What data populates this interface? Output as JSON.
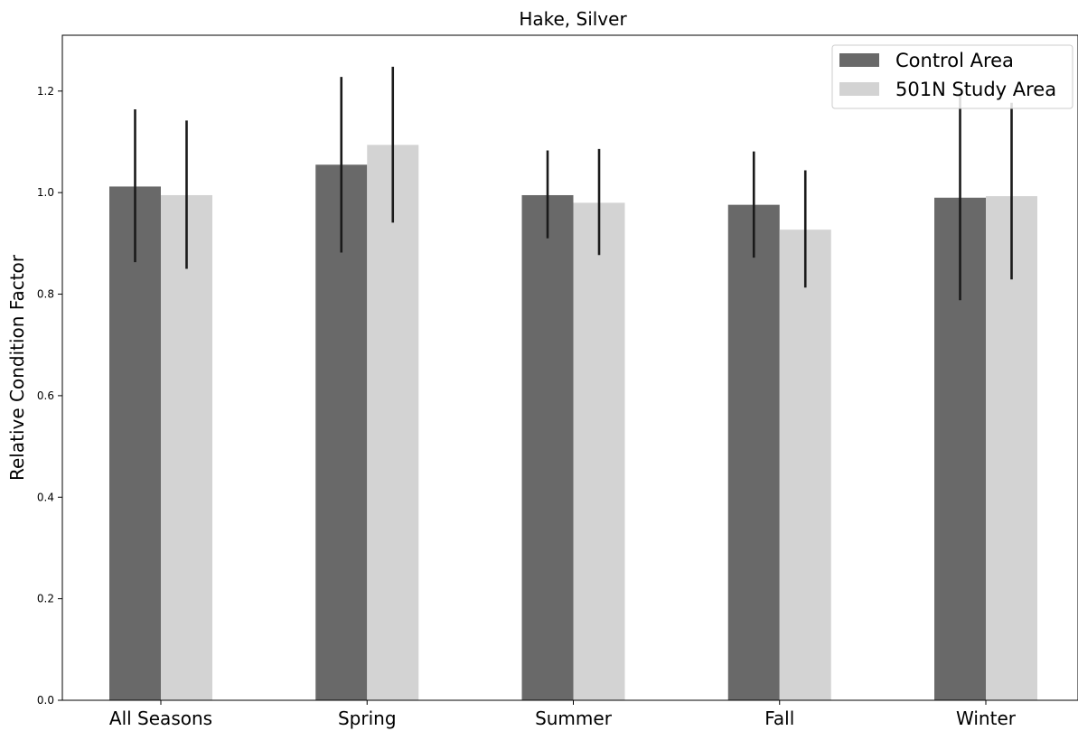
{
  "chart_data": {
    "type": "bar",
    "title": "Hake, Silver",
    "xlabel": "",
    "ylabel": "Relative Condition Factor",
    "ylim": [
      0,
      1.31
    ],
    "yticks": [
      "0.0",
      "0.2",
      "0.4",
      "0.6",
      "0.8",
      "1.0",
      "1.2"
    ],
    "categories": [
      "All Seasons",
      "Spring",
      "Summer",
      "Fall",
      "Winter"
    ],
    "series": [
      {
        "name": "Control Area",
        "color": "#696969",
        "values": [
          1.012,
          1.055,
          0.995,
          0.976,
          0.99
        ],
        "err_low": [
          0.863,
          0.882,
          0.91,
          0.872,
          0.788
        ],
        "err_high": [
          1.164,
          1.228,
          1.083,
          1.081,
          1.195
        ]
      },
      {
        "name": "501N Study Area",
        "color": "#d3d3d3",
        "values": [
          0.995,
          1.094,
          0.98,
          0.927,
          0.993
        ],
        "err_low": [
          0.85,
          0.941,
          0.877,
          0.813,
          0.829
        ],
        "err_high": [
          1.142,
          1.248,
          1.086,
          1.044,
          1.177
        ]
      }
    ],
    "grid": false,
    "legend_position": "top-right",
    "errorbar_color": "#1a1a1a"
  }
}
